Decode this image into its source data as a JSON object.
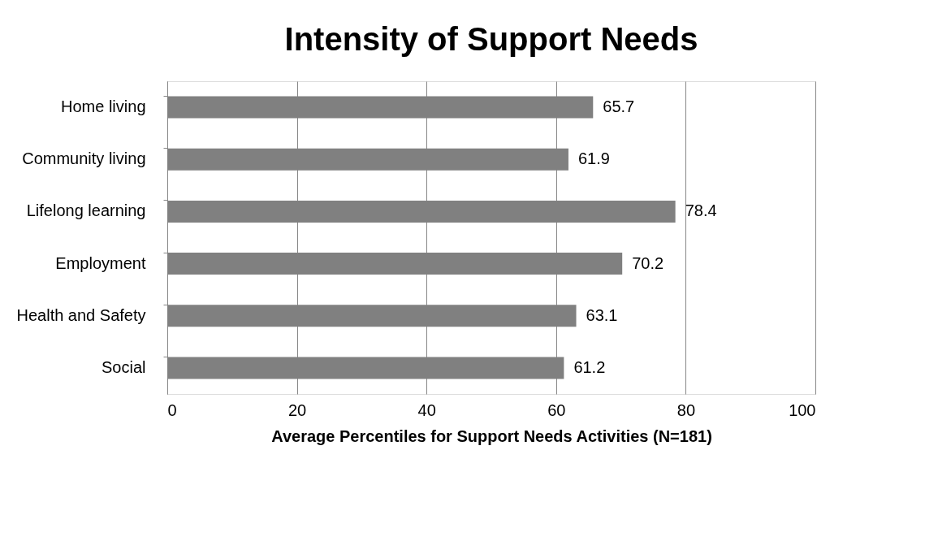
{
  "chart_data": {
    "type": "bar",
    "orientation": "horizontal",
    "title": "Intensity of Support Needs",
    "xlabel": "Average Percentiles for Support Needs Activities (N=181)",
    "categories": [
      "Home living",
      "Community living",
      "Lifelong learning",
      "Employment",
      "Health and Safety",
      "Social"
    ],
    "values": [
      65.7,
      61.9,
      78.4,
      70.2,
      63.1,
      61.2
    ],
    "color": "#808080",
    "xlim": [
      0,
      100
    ],
    "xticks": [
      0,
      20,
      40,
      60,
      80,
      100
    ],
    "grid": "x",
    "data_labels": true
  }
}
